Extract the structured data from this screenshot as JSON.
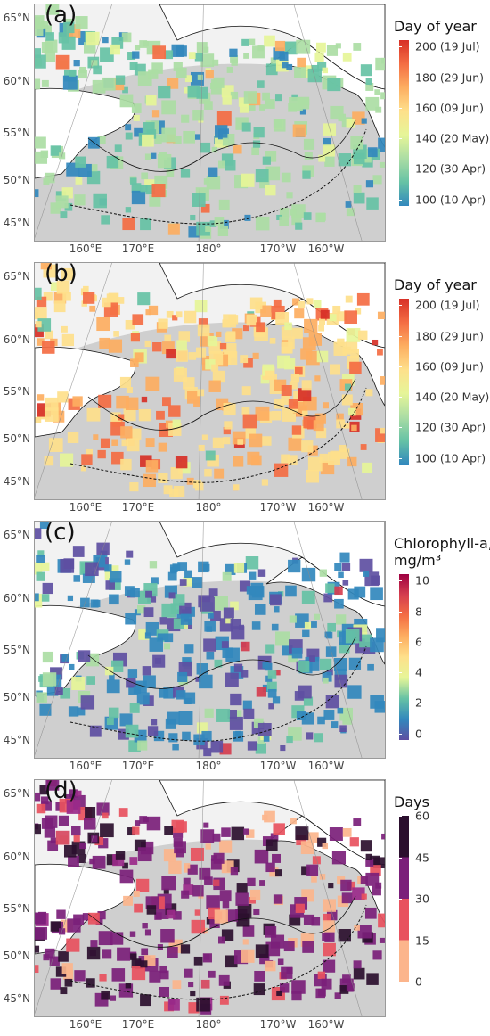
{
  "axes": {
    "lat_labels": [
      "65°N",
      "60°N",
      "55°N",
      "50°N",
      "45°N"
    ],
    "lon_labels": [
      "160°E",
      "170°E",
      "180°",
      "170°W",
      "160°W"
    ]
  },
  "panels": [
    {
      "label": "(a)",
      "legend": {
        "title_lines": [
          "Day of year"
        ],
        "ticks": [
          "200 (19 Jul)",
          "180 (29 Jun)",
          "160 (09 Jun)",
          "140 (20 May)",
          "120 (30 Apr)",
          "100 (10 Apr)"
        ],
        "colors": [
          "#d73027",
          "#f46d43",
          "#fdae61",
          "#fee08b",
          "#e6f598",
          "#abdda4",
          "#66c2a5",
          "#3288bd"
        ],
        "type": "continuous"
      },
      "field_colors": [
        "#abdda4",
        "#66c2a5",
        "#3288bd",
        "#e6f598",
        "#fdae61",
        "#f46d43"
      ]
    },
    {
      "label": "(b)",
      "legend": {
        "title_lines": [
          "Day of year"
        ],
        "ticks": [
          "200 (19 Jul)",
          "180 (29 Jun)",
          "160 (09 Jun)",
          "140 (20 May)",
          "120 (30 Apr)",
          "100 (10 Apr)"
        ],
        "colors": [
          "#d73027",
          "#f46d43",
          "#fdae61",
          "#fee08b",
          "#e6f598",
          "#abdda4",
          "#66c2a5",
          "#3288bd"
        ],
        "type": "continuous"
      },
      "field_colors": [
        "#fee08b",
        "#fdae61",
        "#f46d43",
        "#e6f598",
        "#d73027",
        "#66c2a5"
      ]
    },
    {
      "label": "(c)",
      "legend": {
        "title_lines": [
          "Chlorophyll-a,",
          "mg/m³"
        ],
        "ticks": [
          "10",
          "8",
          "6",
          "4",
          "2",
          "0"
        ],
        "colors": [
          "#9e0142",
          "#d53e4f",
          "#f46d43",
          "#fdae61",
          "#fee08b",
          "#e6f598",
          "#66c2a5",
          "#3288bd",
          "#5e4fa2"
        ],
        "type": "continuous"
      },
      "field_colors": [
        "#3288bd",
        "#5e4fa2",
        "#66c2a5",
        "#abdda4",
        "#e6f598",
        "#d53e4f"
      ]
    },
    {
      "label": "(d)",
      "legend": {
        "title_lines": [
          "Days"
        ],
        "ticks": [
          "60",
          "45",
          "30",
          "15",
          "0"
        ],
        "colors": [
          "#2b0f2e",
          "#7b1f7a",
          "#e8515e",
          "#fcb58c"
        ],
        "type": "binned"
      },
      "field_colors": [
        "#7b1f7a",
        "#2b0f2e",
        "#e8515e",
        "#fcb58c",
        "#9b2a8a",
        "#d7485f"
      ]
    }
  ],
  "colors": {
    "land": "#ffffff",
    "outside": "#cfcfcf",
    "no_data_ocean": "#f2f2f2",
    "grid": "#8a8a8a",
    "coast": "#111111"
  }
}
